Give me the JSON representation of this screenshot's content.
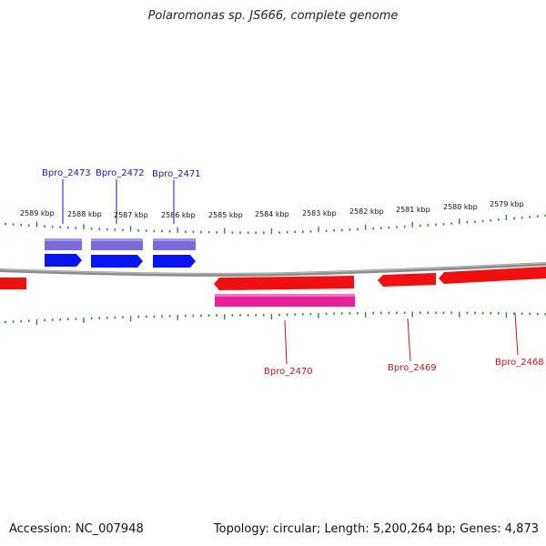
{
  "title": "Polaromonas sp. JS666, complete genome",
  "footer": {
    "accession": "Accession: NC_007948",
    "summary": "Topology: circular; Length: 5,200,264 bp; Genes: 4,873"
  },
  "colors": {
    "backbone": "#8c8c8c",
    "tick": "#2e8b2e",
    "fwd_cds": "#0a14f0",
    "fwd_gene": "#7a6bd8",
    "rev_cds": "#f01010",
    "rev_gene": "#e8209a",
    "fwd_label": "#1a1aa8",
    "rev_label": "#c01818"
  },
  "scale_labels": [
    "2589 kbp",
    "2588 kbp",
    "2587 kbp",
    "2586 kbp",
    "2585 kbp",
    "2584 kbp",
    "2583 kbp",
    "2582 kbp",
    "2581 kbp",
    "2580 kbp",
    "2579 kbp"
  ],
  "genes_forward": [
    "Bpro_2473",
    "Bpro_2472",
    "Bpro_2471"
  ],
  "genes_reverse": [
    "Bpro_2470",
    "Bpro_2469",
    "Bpro_2468"
  ]
}
